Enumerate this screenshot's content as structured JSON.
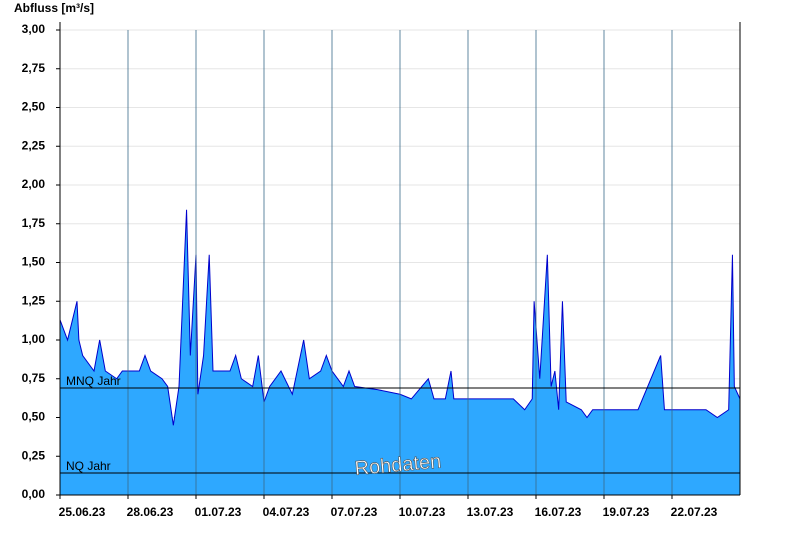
{
  "chart_data": {
    "type": "area",
    "y_label": "Abfluss [m³/s]",
    "annotation": "Rohdaten",
    "fill_color": "#2ea8ff",
    "line_color": "#0000cc",
    "grid": true,
    "x": [
      "2023-06-25T00:00",
      "2023-06-25T08:00",
      "2023-06-25T18:00",
      "2023-06-25T20:00",
      "2023-06-26T00:00",
      "2023-06-26T12:00",
      "2023-06-26T18:00",
      "2023-06-27T00:00",
      "2023-06-27T12:00",
      "2023-06-27T18:00",
      "2023-06-28T12:00",
      "2023-06-28T18:00",
      "2023-06-29T00:00",
      "2023-06-29T12:00",
      "2023-06-29T18:00",
      "2023-06-30T00:00",
      "2023-06-30T06:00",
      "2023-06-30T14:00",
      "2023-06-30T18:00",
      "2023-07-01T00:00",
      "2023-07-01T02:00",
      "2023-07-01T08:00",
      "2023-07-01T14:00",
      "2023-07-01T18:00",
      "2023-07-02T12:00",
      "2023-07-02T18:00",
      "2023-07-03T00:00",
      "2023-07-03T12:00",
      "2023-07-03T18:00",
      "2023-07-04T00:00",
      "2023-07-04T06:00",
      "2023-07-04T18:00",
      "2023-07-05T06:00",
      "2023-07-05T18:00",
      "2023-07-06T00:00",
      "2023-07-06T12:00",
      "2023-07-06T18:00",
      "2023-07-07T00:00",
      "2023-07-07T12:00",
      "2023-07-07T18:00",
      "2023-07-08T00:00",
      "2023-07-09T00:00",
      "2023-07-10T00:00",
      "2023-07-10T12:00",
      "2023-07-11T06:00",
      "2023-07-11T12:00",
      "2023-07-12T00:00",
      "2023-07-12T06:00",
      "2023-07-12T09:00",
      "2023-07-15T00:00",
      "2023-07-15T12:00",
      "2023-07-15T20:00",
      "2023-07-15T22:00",
      "2023-07-16T04:00",
      "2023-07-16T12:00",
      "2023-07-16T16:00",
      "2023-07-16T20:00",
      "2023-07-17T00:00",
      "2023-07-17T04:00",
      "2023-07-17T08:00",
      "2023-07-18T00:00",
      "2023-07-18T06:00",
      "2023-07-18T12:00",
      "2023-07-20T12:00",
      "2023-07-21T12:00",
      "2023-07-21T16:00",
      "2023-07-23T12:00",
      "2023-07-24T00:00",
      "2023-07-24T12:00",
      "2023-07-24T16:00",
      "2023-07-24T18:00",
      "2023-07-25T00:00"
    ],
    "values": [
      1.13,
      1.0,
      1.25,
      1.0,
      0.9,
      0.8,
      1.0,
      0.8,
      0.75,
      0.8,
      0.8,
      0.9,
      0.8,
      0.75,
      0.7,
      0.45,
      0.7,
      1.84,
      0.9,
      1.55,
      0.65,
      0.9,
      1.55,
      0.8,
      0.8,
      0.9,
      0.75,
      0.7,
      0.9,
      0.6,
      0.7,
      0.8,
      0.65,
      1.0,
      0.75,
      0.8,
      0.9,
      0.8,
      0.7,
      0.8,
      0.7,
      0.68,
      0.65,
      0.62,
      0.75,
      0.62,
      0.62,
      0.8,
      0.62,
      0.62,
      0.55,
      0.62,
      1.25,
      0.75,
      1.55,
      0.7,
      0.8,
      0.55,
      1.25,
      0.6,
      0.55,
      0.5,
      0.55,
      0.55,
      0.9,
      0.55,
      0.55,
      0.5,
      0.55,
      1.55,
      0.7,
      0.62
    ],
    "xlim": [
      "2023-06-25T00:00",
      "2023-07-25T00:00"
    ],
    "xticks": [
      {
        "value": "2023-06-25T00:00",
        "label": "25.06.23"
      },
      {
        "value": "2023-06-28T00:00",
        "label": "28.06.23"
      },
      {
        "value": "2023-07-01T00:00",
        "label": "01.07.23"
      },
      {
        "value": "2023-07-04T00:00",
        "label": "04.07.23"
      },
      {
        "value": "2023-07-07T00:00",
        "label": "07.07.23"
      },
      {
        "value": "2023-07-10T00:00",
        "label": "10.07.23"
      },
      {
        "value": "2023-07-13T00:00",
        "label": "13.07.23"
      },
      {
        "value": "2023-07-16T00:00",
        "label": "16.07.23"
      },
      {
        "value": "2023-07-19T00:00",
        "label": "19.07.23"
      },
      {
        "value": "2023-07-22T00:00",
        "label": "22.07.23"
      }
    ],
    "ylim": [
      0,
      3
    ],
    "yticks": [
      {
        "value": 0,
        "label": "0,00"
      },
      {
        "value": 0.25,
        "label": "0,25"
      },
      {
        "value": 0.5,
        "label": "0,50"
      },
      {
        "value": 0.75,
        "label": "0,75"
      },
      {
        "value": 1,
        "label": "1,00"
      },
      {
        "value": 1.25,
        "label": "1,25"
      },
      {
        "value": 1.5,
        "label": "1,50"
      },
      {
        "value": 1.75,
        "label": "1,75"
      },
      {
        "value": 2,
        "label": "2,00"
      },
      {
        "value": 2.25,
        "label": "2,25"
      },
      {
        "value": 2.5,
        "label": "2,50"
      },
      {
        "value": 2.75,
        "label": "2,75"
      },
      {
        "value": 3,
        "label": "3,00"
      }
    ],
    "reference_lines": [
      {
        "label": "MNQ Jahr",
        "value": 0.69
      },
      {
        "label": "NQ Jahr",
        "value": 0.142
      }
    ]
  }
}
